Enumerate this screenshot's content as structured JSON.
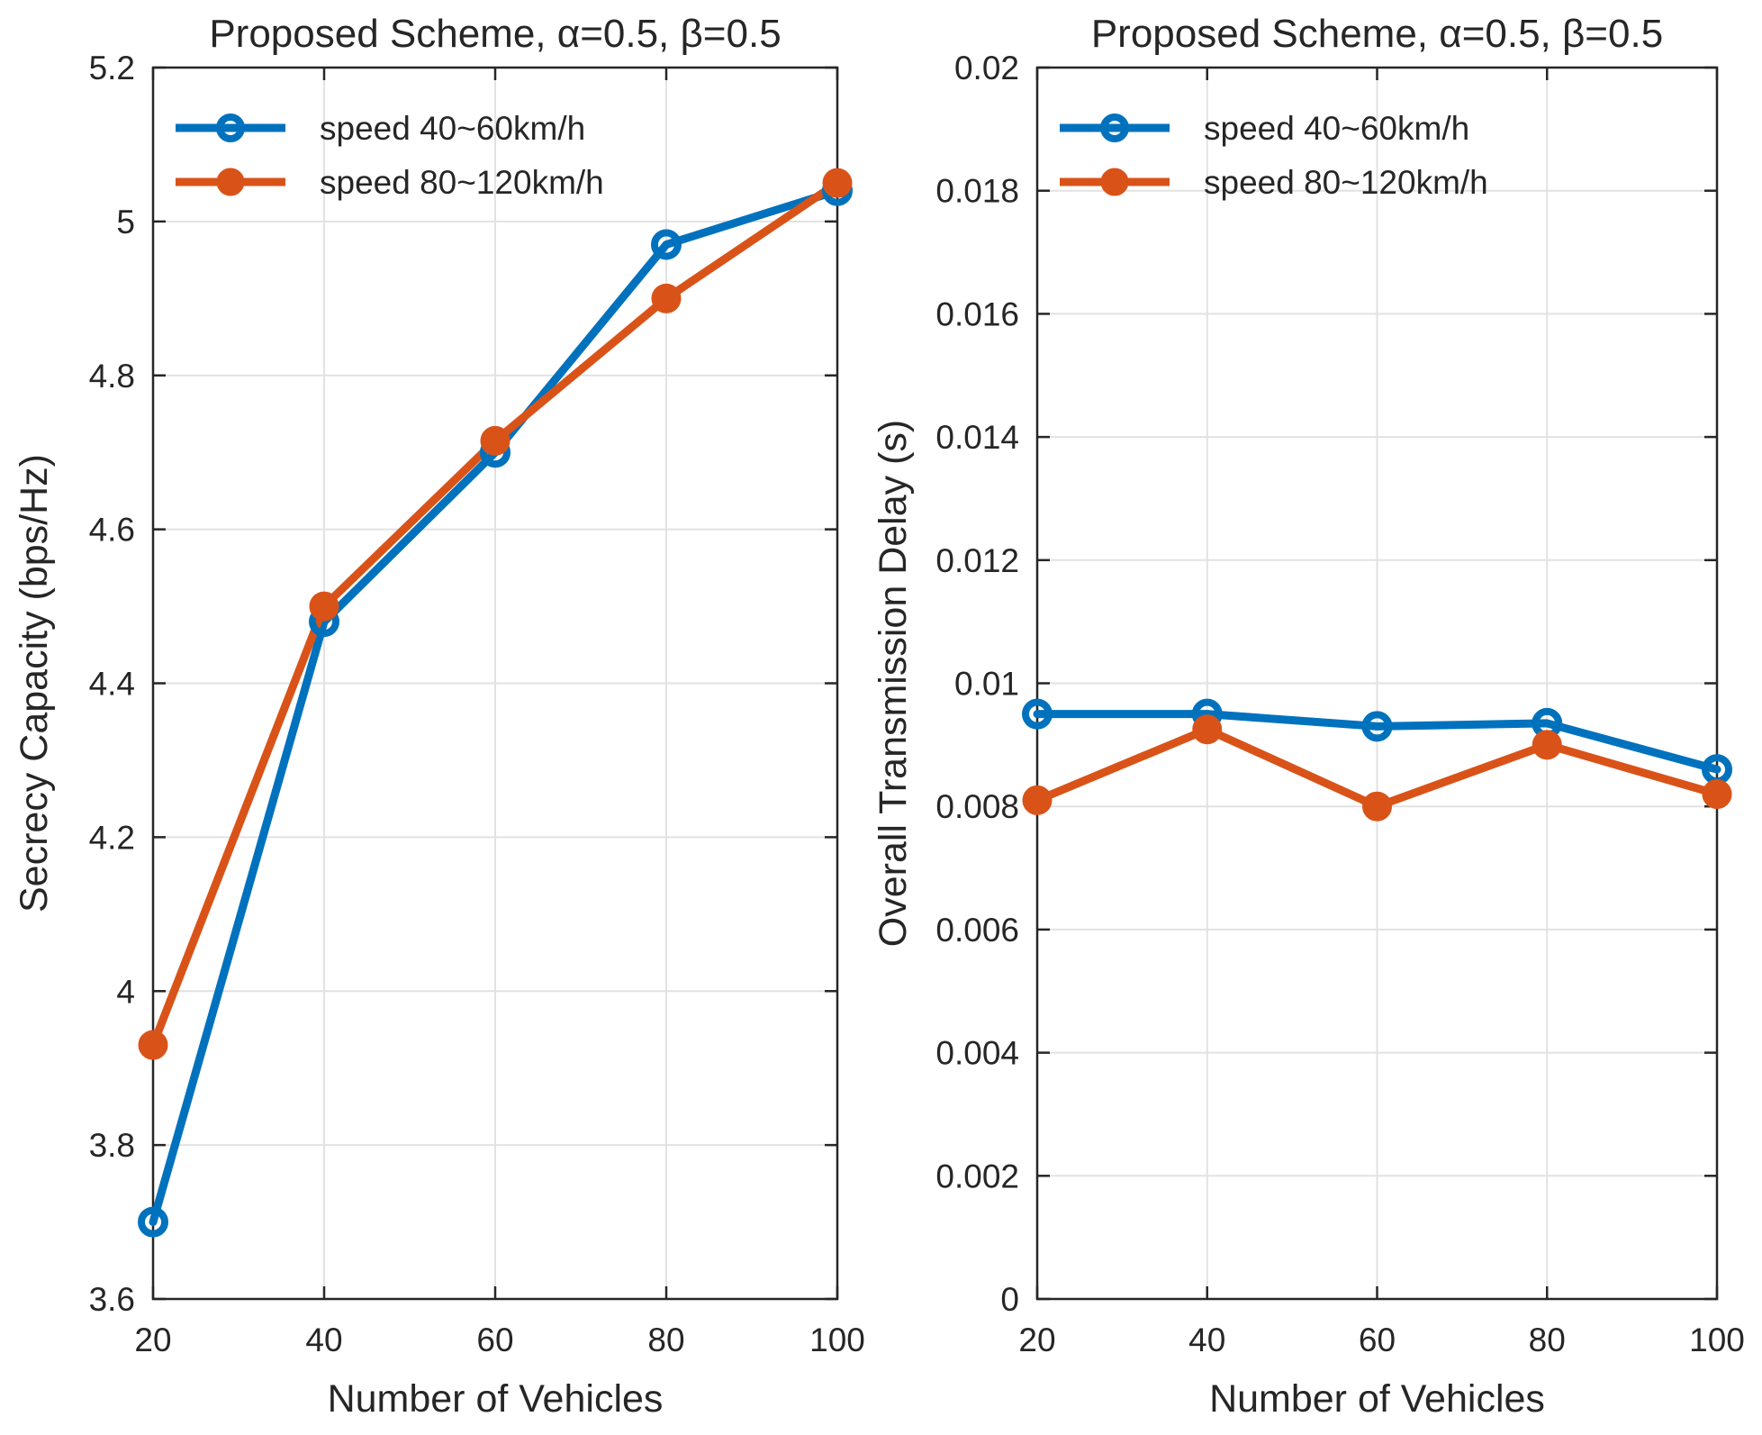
{
  "figure": {
    "background": "#ffffff",
    "axis_color": "#262626",
    "grid_color": "#e2e2e2"
  },
  "chart_data": [
    {
      "type": "line",
      "title": "Proposed Scheme, α=0.5, β=0.5",
      "xlabel": "Number of Vehicles",
      "ylabel": "Secrecy Capacity (bps/Hz)",
      "x": [
        20,
        40,
        60,
        80,
        100
      ],
      "xlim": [
        20,
        100
      ],
      "ylim": [
        3.6,
        5.2
      ],
      "xticks": [
        20,
        40,
        60,
        80,
        100
      ],
      "xtick_labels": [
        "20",
        "40",
        "60",
        "80",
        "100"
      ],
      "yticks": [
        3.6,
        3.8,
        4.0,
        4.2,
        4.4,
        4.6,
        4.8,
        5.0,
        5.2
      ],
      "ytick_labels": [
        "3.6",
        "3.8",
        "4",
        "4.2",
        "4.4",
        "4.6",
        "4.8",
        "5",
        "5.2"
      ],
      "grid": true,
      "legend_position": "top-left",
      "series": [
        {
          "name": "speed 40~60km/h",
          "color": "#0072BD",
          "marker": "open-circle",
          "values": [
            3.7,
            4.48,
            4.7,
            4.97,
            5.04
          ]
        },
        {
          "name": "speed 80~120km/h",
          "color": "#D95319",
          "marker": "filled-circle",
          "values": [
            3.93,
            4.5,
            4.715,
            4.9,
            5.05
          ]
        }
      ]
    },
    {
      "type": "line",
      "title": "Proposed Scheme, α=0.5, β=0.5",
      "xlabel": "Number of Vehicles",
      "ylabel": "Overall Transmission Delay (s)",
      "x": [
        20,
        40,
        60,
        80,
        100
      ],
      "xlim": [
        20,
        100
      ],
      "ylim": [
        0,
        0.02
      ],
      "xticks": [
        20,
        40,
        60,
        80,
        100
      ],
      "xtick_labels": [
        "20",
        "40",
        "60",
        "80",
        "100"
      ],
      "yticks": [
        0,
        0.002,
        0.004,
        0.006,
        0.008,
        0.01,
        0.012,
        0.014,
        0.016,
        0.018,
        0.02
      ],
      "ytick_labels": [
        "0",
        "0.002",
        "0.004",
        "0.006",
        "0.008",
        "0.01",
        "0.012",
        "0.014",
        "0.016",
        "0.018",
        "0.02"
      ],
      "grid": true,
      "legend_position": "top-left",
      "series": [
        {
          "name": "speed 40~60km/h",
          "color": "#0072BD",
          "marker": "open-circle",
          "values": [
            0.0095,
            0.0095,
            0.0093,
            0.00935,
            0.0086
          ]
        },
        {
          "name": "speed 80~120km/h",
          "color": "#D95319",
          "marker": "filled-circle",
          "values": [
            0.0081,
            0.00925,
            0.008,
            0.009,
            0.0082
          ]
        }
      ]
    }
  ]
}
